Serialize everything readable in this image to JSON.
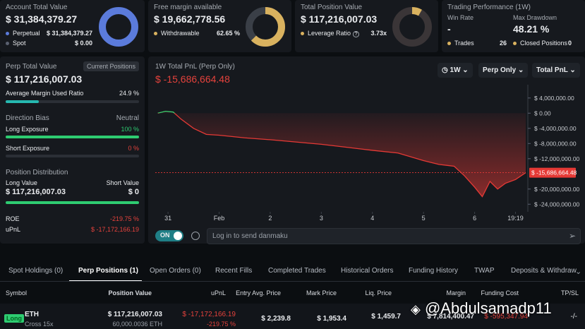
{
  "cards": [
    {
      "title": "Account Total Value",
      "value": "$ 31,384,379.27",
      "rows": [
        {
          "label": "Perpetual",
          "value": "$ 31,384,379.27"
        },
        {
          "label": "Spot",
          "value": "$ 0.00"
        }
      ]
    },
    {
      "title": "Free margin available",
      "value": "$ 19,662,778.56",
      "rows": [
        {
          "label": "Withdrawable",
          "value": {
            "value": 62.65,
            "label": "62.65 %"
          }
        }
      ]
    },
    {
      "title": "Total Position Value",
      "value": "$ 117,216,007.03",
      "rows": [
        {
          "label": "Leverage Ratio",
          "value": "3.73x"
        }
      ]
    },
    {
      "title": "Trading Performance (1W)",
      "stats": [
        {
          "label": "Win Rate",
          "value": "-"
        },
        {
          "label": "Max Drawdown",
          "value": "48.21 %"
        }
      ],
      "rows": [
        {
          "label": "Trades",
          "value": 26
        },
        {
          "label": "Closed Positions",
          "value": 0
        }
      ]
    }
  ],
  "perp_panel": {
    "title": "Perp Total Value",
    "button": "Current Positions",
    "value": "$ 117,216,007.03",
    "margin_label": "Average Margin Used Ratio",
    "margin_ratio": {
      "value": 24.9,
      "label": "24.9 %"
    },
    "direction_title": "Direction Bias",
    "direction": "Neutral",
    "long_label": "Long Exposure",
    "long_pct": {
      "value": 100,
      "label": "100 %"
    },
    "short_label": "Short Exposure",
    "short_pct": {
      "value": 0,
      "label": "0 %"
    },
    "distribution_title": "Position Distribution",
    "long_value_label": "Long Value",
    "short_value_label": "Short Value",
    "long_value": "$ 117,216,007.03",
    "short_value": "$ 0",
    "roe_label": "ROE",
    "roe": "-219.75 %",
    "upnl_label": "uPnL",
    "upnl": "$ -17,172,166.19"
  },
  "pnl_chart": {
    "type": "line",
    "title": "1W Total PnL (Perp Only)",
    "value": "$ -15,686,664.48",
    "controls": [
      "1W",
      "Perp Only",
      "Total PnL"
    ],
    "x": [
      -0.2,
      -0.05,
      0.1,
      0.25,
      0.5,
      0.75,
      1,
      1.5,
      2,
      2.5,
      3,
      3.5,
      4,
      4.5,
      5,
      5.3,
      5.6,
      5.8,
      6,
      6.15,
      6.3,
      6.45,
      6.6,
      6.8,
      7
    ],
    "series": [
      {
        "color": "#e53935",
        "values": [
          0,
          500000,
          300000,
          -1500000,
          -4000000,
          -5600000,
          -5800000,
          -6500000,
          -7000000,
          -7600000,
          -8200000,
          -9000000,
          -9800000,
          -10500000,
          -12500000,
          -13500000,
          -14000000,
          -16500000,
          -19500000,
          -22000000,
          -18000000,
          -20000000,
          -18500000,
          -17500000,
          -15686664.48
        ]
      }
    ],
    "positive_color": "#3ccf6e",
    "xlim": [
      -0.25,
      7
    ],
    "xticks": [
      {
        "value": 0,
        "label": "31"
      },
      {
        "value": 1,
        "label": "Feb"
      },
      2,
      3,
      4,
      5,
      6,
      {
        "value": 6.8,
        "label": "19:19"
      }
    ],
    "ylim": [
      -26000000,
      7500000
    ],
    "yticks": [
      {
        "value": 4000000,
        "label": "$ 4,000,000.00"
      },
      {
        "value": 0,
        "label": "$ 0.00"
      },
      {
        "value": -4000000,
        "label": "$ -4,000,000.00"
      },
      {
        "value": -8000000,
        "label": "$ -8,000,000.00"
      },
      {
        "value": -12000000,
        "label": "$ -12,000,000.00"
      },
      {
        "value": -20000000,
        "label": "$ -20,000,000.00"
      },
      {
        "value": -24000000,
        "label": "$ -24,000,000.00"
      }
    ],
    "last_label": "$ -15,686,664.48"
  },
  "danmaku": {
    "toggle": "ON",
    "placeholder": "Log in to send danmaku"
  },
  "tabs": [
    "Spot Holdings (0)",
    "Perp Positions (1)",
    "Open Orders (0)",
    "Recent Fills",
    "Completed Trades",
    "Historical Orders",
    "Funding History",
    "TWAP",
    "Deposits & Withdraw"
  ],
  "active_tab": 1,
  "table": {
    "headers": [
      "Symbol",
      "Position Value",
      "uPnL",
      "Entry Avg. Price",
      "Mark Price",
      "Liq. Price",
      "Margin",
      "Funding Cost",
      "TP/SL"
    ],
    "rows": [
      {
        "side": "Long",
        "symbol": "ETH",
        "leverage": "Cross 15x",
        "position_value": "$ 117,216,007.03",
        "size": "60,000.0036 ETH",
        "upnl": "$ -17,172,166.19",
        "upnl_pct": "-219.75 %",
        "entry": "$ 2,239.8",
        "mark": "$ 1,953.4",
        "liq": "$ 1,459.7",
        "margin": "$ 7,814,400.47",
        "funding": "$ -595,347.94",
        "tpsl": "-/-"
      }
    ]
  },
  "watermark": "@Abdulsamadp11"
}
